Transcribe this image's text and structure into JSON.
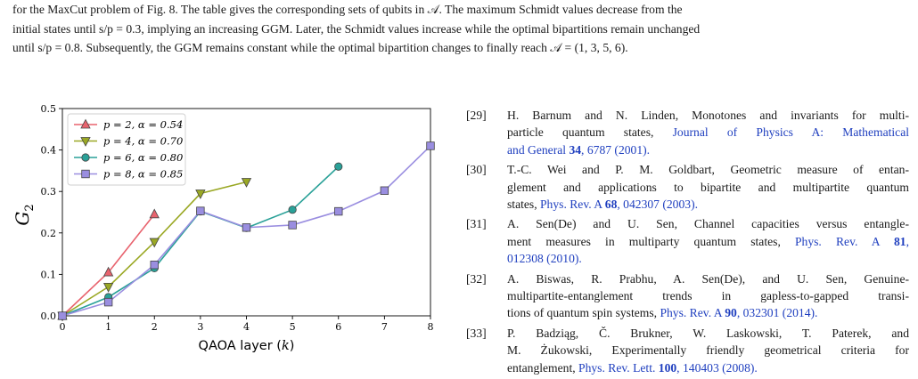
{
  "caption": {
    "lines": [
      "for the MaxCut problem of Fig. 8. The table gives the corresponding sets of qubits in 𝒜. The maximum Schmidt values decrease from the",
      "initial states until s/p = 0.3, implying an increasing GGM. Later, the Schmidt values increase while the optimal bipartitions remain unchanged",
      "until s/p = 0.8. Subsequently, the GGM remains constant while the optimal bipartition changes to finally reach 𝒜 = (1, 3, 5, 6)."
    ]
  },
  "chart_data": {
    "type": "line",
    "xlabel": "QAOA layer (k)",
    "ylabel": "G2",
    "xlim": [
      0,
      8
    ],
    "ylim": [
      0,
      0.5
    ],
    "x_ticks": [
      "0",
      "1",
      "2",
      "3",
      "4",
      "5",
      "6",
      "7",
      "8"
    ],
    "y_ticks": [
      "0.0",
      "0.1",
      "0.2",
      "0.3",
      "0.4",
      "0.5"
    ],
    "grid": false,
    "legend_position": "top-left",
    "series": [
      {
        "name": "p = 2, α = 0.54",
        "color": "#e8636e",
        "marker": "triangle-up",
        "x": [
          0,
          1,
          2
        ],
        "y": [
          0.0,
          0.105,
          0.245
        ]
      },
      {
        "name": "p = 4, α = 0.70",
        "color": "#9aa824",
        "marker": "triangle-down",
        "x": [
          0,
          1,
          2,
          3,
          4
        ],
        "y": [
          0.0,
          0.07,
          0.178,
          0.295,
          0.323
        ]
      },
      {
        "name": "p = 6, α = 0.80",
        "color": "#2aa198",
        "marker": "circle",
        "x": [
          0,
          1,
          2,
          3,
          4,
          5,
          6
        ],
        "y": [
          0.0,
          0.045,
          0.115,
          0.252,
          0.212,
          0.256,
          0.36
        ]
      },
      {
        "name": "p = 8, α = 0.85",
        "color": "#9a8ee0",
        "marker": "square",
        "x": [
          0,
          1,
          2,
          3,
          4,
          5,
          6,
          7,
          8
        ],
        "y": [
          0.0,
          0.033,
          0.123,
          0.253,
          0.213,
          0.219,
          0.252,
          0.302,
          0.41
        ]
      }
    ]
  },
  "references": [
    {
      "num": "[29]",
      "lines": [
        {
          "text": "H. Barnum and N. Linden, Monotones and invariants for multi-"
        },
        {
          "text": "particle quantum states, ",
          "link": "Journal of Physics A: Mathematical"
        },
        {
          "link": "and General ",
          "vol": "34",
          "link2": ", 6787 (2001)."
        }
      ]
    },
    {
      "num": "[30]",
      "lines": [
        {
          "text": "T.-C. Wei and P. M. Goldbart, Geometric measure of entan-"
        },
        {
          "text": "glement and applications to bipartite and multipartite quantum"
        },
        {
          "text": "states, ",
          "link": "Phys. Rev. A ",
          "vol": "68",
          "link2": ", 042307 (2003)."
        }
      ]
    },
    {
      "num": "[31]",
      "lines": [
        {
          "text": "A. Sen(De) and U. Sen, Channel capacities versus entangle-"
        },
        {
          "text": "ment measures in multiparty quantum states, ",
          "link": "Phys. Rev. A ",
          "vol": "81",
          "link2": ","
        },
        {
          "link": "012308 (2010)."
        }
      ]
    },
    {
      "num": "[32]",
      "lines": [
        {
          "text": "A. Biswas, R. Prabhu, A. Sen(De), and U. Sen, Genuine-"
        },
        {
          "text": "multipartite-entanglement trends in gapless-to-gapped transi-"
        },
        {
          "text": "tions of quantum spin systems, ",
          "link": "Phys. Rev. A ",
          "vol": "90",
          "link2": ", 032301 (2014)."
        }
      ]
    },
    {
      "num": "[33]",
      "lines": [
        {
          "text": "P. Badziąg, Č. Brukner, W. Laskowski, T. Paterek, and"
        },
        {
          "text": "M. Żukowski, Experimentally friendly geometrical criteria for"
        },
        {
          "text": "entanglement, ",
          "link": "Phys. Rev. Lett. ",
          "vol": "100",
          "link2": ", 140403 (2008)."
        }
      ]
    }
  ]
}
